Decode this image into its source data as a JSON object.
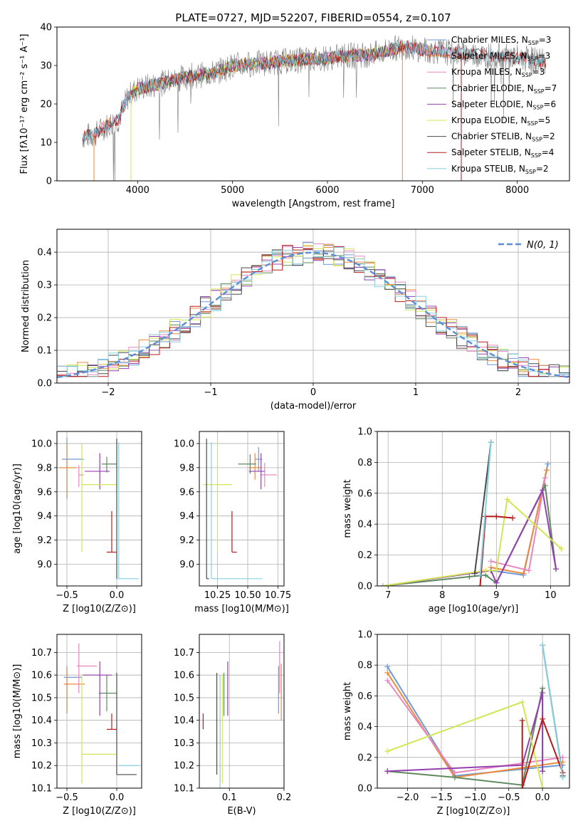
{
  "figure_title": "PLATE=0727, MJD=52207, FIBERID=0554, z=0.107",
  "colors": {
    "Chabrier MILES": "#6f9ad6",
    "Salpeter MILES": "#ee8a3c",
    "Kroupa MILES": "#e986c2",
    "Chabrier ELODIE": "#5f8a5f",
    "Salpeter ELODIE": "#9440b0",
    "Kroupa ELODIE": "#d2e654",
    "Chabrier STELIB": "#4a4a4a",
    "Salpeter STELIB": "#b81a1a",
    "Kroupa STELIB": "#86d2e0"
  },
  "chart_data": [
    {
      "id": "spectrum",
      "type": "line",
      "xlabel": "wavelength [Angstrom, rest frame]",
      "ylabel": "Flux [fλ10⁻¹⁷ erg cm⁻² s⁻¹ A⁻¹]",
      "xlim": [
        3150,
        8550
      ],
      "ylim": [
        0,
        40
      ],
      "xticks": [
        4000,
        5000,
        6000,
        7000,
        8000
      ],
      "yticks": [
        0,
        10,
        20,
        30,
        40
      ],
      "legend": "right",
      "legend_entries": [
        "Chabrier MILES, N_SSP=3",
        "Salpeter MILES, N_SSP=3",
        "Kroupa MILES, N_SSP=3",
        "Chabrier ELODIE, N_SSP=7",
        "Salpeter ELODIE, N_SSP=6",
        "Kroupa ELODIE, N_SSP=5",
        "Chabrier STELIB, N_SSP=2",
        "Salpeter STELIB, N_SSP=4",
        "Kroupa STELIB, N_SSP=2"
      ],
      "continuum": [
        [
          3420,
          11.5
        ],
        [
          3550,
          12
        ],
        [
          3650,
          14
        ],
        [
          3800,
          16
        ],
        [
          3900,
          22
        ],
        [
          4000,
          24
        ],
        [
          4200,
          25
        ],
        [
          4500,
          27
        ],
        [
          4800,
          28
        ],
        [
          5000,
          30
        ],
        [
          5500,
          31
        ],
        [
          6000,
          32
        ],
        [
          6500,
          33
        ],
        [
          6800,
          35
        ],
        [
          7000,
          34
        ],
        [
          7500,
          33
        ],
        [
          8000,
          32
        ],
        [
          8300,
          31
        ]
      ],
      "spectrum_xrange": [
        3420,
        8300
      ],
      "drop_lines": [
        3540,
        3930,
        6790,
        7410
      ],
      "model_ranges": {
        "Chabrier MILES": [
          3540,
          7400
        ],
        "Salpeter MILES": [
          3540,
          7400
        ],
        "Kroupa MILES": [
          3540,
          7400
        ],
        "Chabrier ELODIE": [
          3930,
          6790
        ],
        "Salpeter ELODIE": [
          3930,
          6790
        ],
        "Kroupa ELODIE": [
          3930,
          6790
        ],
        "Chabrier STELIB": [
          3420,
          8300
        ],
        "Salpeter STELIB": [
          3420,
          8300
        ],
        "Kroupa STELIB": [
          3420,
          8300
        ]
      }
    },
    {
      "id": "residuals",
      "type": "histogram",
      "xlabel": "(data-model)/error",
      "ylabel": "Normed distribution",
      "xlim": [
        -2.5,
        2.5
      ],
      "ylim": [
        0,
        0.47
      ],
      "xticks": [
        -2,
        -1,
        0,
        1,
        2
      ],
      "yticks": [
        0.0,
        0.1,
        0.2,
        0.3,
        0.4
      ],
      "bin_width": 0.1,
      "legend": "top-right",
      "legend_entry": "N(0, 1)",
      "reference_curve": "normal(0,1)"
    },
    {
      "id": "z_age",
      "type": "errorbar",
      "xlabel": "Z [log10(Z/Z⊙)]",
      "ylabel": "age [log10(age/yr)]",
      "xlim": [
        -0.6,
        0.25
      ],
      "ylim": [
        8.82,
        10.1
      ],
      "xticks": [
        -0.5,
        0.0
      ],
      "yticks": [
        9.0,
        9.2,
        9.4,
        9.6,
        9.8,
        10.0
      ],
      "points": [
        {
          "s": "Chabrier MILES",
          "x": -0.5,
          "xe": [
            0.05,
            0.17
          ],
          "y": 9.87,
          "ye": [
            0.33,
            0.18
          ]
        },
        {
          "s": "Salpeter MILES",
          "x": -0.5,
          "xe": [
            0.08,
            0.1
          ],
          "y": 9.8,
          "ye": [
            0.25,
            0.2
          ]
        },
        {
          "s": "Kroupa MILES",
          "x": -0.38,
          "xe": [
            0.0,
            0.05
          ],
          "y": 9.74,
          "ye": [
            0.1,
            0.08
          ]
        },
        {
          "s": "Chabrier ELODIE",
          "x": -0.1,
          "xe": [
            0.05,
            0.1
          ],
          "y": 9.83,
          "ye": [
            0.07,
            0.06
          ]
        },
        {
          "s": "Salpeter ELODIE",
          "x": -0.17,
          "xe": [
            0.15,
            0.1
          ],
          "y": 9.77,
          "ye": [
            0.15,
            0.15
          ]
        },
        {
          "s": "Kroupa ELODIE",
          "x": -0.35,
          "xe": [
            0.0,
            0.35
          ],
          "y": 9.66,
          "ye": [
            0.56,
            0.34
          ]
        },
        {
          "s": "Chabrier STELIB",
          "x": 0.0,
          "xe": [
            0.0,
            0.0
          ],
          "y": 8.88,
          "ye": [
            0.0,
            1.16
          ]
        },
        {
          "s": "Salpeter STELIB",
          "x": -0.05,
          "xe": [
            0.05,
            0.05
          ],
          "y": 9.1,
          "ye": [
            0.0,
            0.34
          ]
        },
        {
          "s": "Kroupa STELIB",
          "x": 0.02,
          "xe": [
            0.02,
            0.2
          ],
          "y": 8.88,
          "ye": [
            0.0,
            1.13
          ]
        }
      ]
    },
    {
      "id": "mass_age",
      "type": "errorbar",
      "xlabel": "mass [log10(M/M⊙)]",
      "ylabel": "",
      "xlim": [
        10.1,
        10.8
      ],
      "ylim": [
        8.82,
        10.1
      ],
      "xticks": [
        10.25,
        10.5,
        10.75
      ],
      "yticks": [
        9.0,
        9.2,
        9.4,
        9.6,
        9.8,
        10.0
      ],
      "points": [
        {
          "s": "Chabrier MILES",
          "x": 10.59,
          "xe": [
            0.03,
            0.03
          ],
          "y": 9.87,
          "ye": [
            0.1,
            0.1
          ]
        },
        {
          "s": "Salpeter MILES",
          "x": 10.56,
          "xe": [
            0.05,
            0.05
          ],
          "y": 9.8,
          "ye": [
            0.1,
            0.12
          ]
        },
        {
          "s": "Kroupa MILES",
          "x": 10.64,
          "xe": [
            0.03,
            0.1
          ],
          "y": 9.74,
          "ye": [
            0.1,
            0.1
          ]
        },
        {
          "s": "Chabrier ELODIE",
          "x": 10.52,
          "xe": [
            0.1,
            0.05
          ],
          "y": 9.83,
          "ye": [
            0.08,
            0.08
          ]
        },
        {
          "s": "Salpeter ELODIE",
          "x": 10.61,
          "xe": [
            0.1,
            0.03
          ],
          "y": 9.77,
          "ye": [
            0.15,
            0.15
          ]
        },
        {
          "s": "Kroupa ELODIE",
          "x": 10.25,
          "xe": [
            0.12,
            0.12
          ],
          "y": 9.66,
          "ye": [
            0.56,
            0.38
          ]
        },
        {
          "s": "Chabrier STELIB",
          "x": 10.16,
          "xe": [
            0.0,
            0.02
          ],
          "y": 8.88,
          "ye": [
            0.0,
            1.16
          ]
        },
        {
          "s": "Salpeter STELIB",
          "x": 10.37,
          "xe": [
            0.0,
            0.04
          ],
          "y": 9.1,
          "ye": [
            0.0,
            0.34
          ]
        },
        {
          "s": "Kroupa STELIB",
          "x": 10.2,
          "xe": [
            0.0,
            0.42
          ],
          "y": 8.88,
          "ye": [
            0.0,
            1.13
          ]
        }
      ]
    },
    {
      "id": "age_weight",
      "type": "line",
      "xlabel": "age [log10(age/yr)]",
      "ylabel": "mass weight",
      "xlim": [
        6.8,
        10.35
      ],
      "ylim": [
        0,
        1.0
      ],
      "xticks": [
        7,
        8,
        9,
        10
      ],
      "yticks": [
        0.0,
        0.2,
        0.4,
        0.6,
        0.8,
        1.0
      ],
      "series": [
        {
          "s": "Chabrier MILES",
          "pts": [
            [
              8.9,
              0.1
            ],
            [
              9.5,
              0.07
            ],
            [
              9.95,
              0.79
            ]
          ]
        },
        {
          "s": "Salpeter MILES",
          "pts": [
            [
              8.9,
              0.12
            ],
            [
              9.5,
              0.08
            ],
            [
              9.93,
              0.75
            ]
          ]
        },
        {
          "s": "Kroupa MILES",
          "pts": [
            [
              8.9,
              0.16
            ],
            [
              9.6,
              0.1
            ],
            [
              9.9,
              0.7
            ]
          ]
        },
        {
          "s": "Chabrier ELODIE",
          "pts": [
            [
              6.9,
              0.0
            ],
            [
              8.5,
              0.06
            ],
            [
              8.8,
              0.07
            ],
            [
              9.0,
              0.02
            ],
            [
              9.9,
              0.65
            ],
            [
              10.1,
              0.11
            ]
          ]
        },
        {
          "s": "Salpeter ELODIE",
          "pts": [
            [
              6.9,
              0.0
            ],
            [
              8.9,
              0.1
            ],
            [
              9.0,
              0.02
            ],
            [
              9.85,
              0.62
            ],
            [
              10.1,
              0.11
            ]
          ]
        },
        {
          "s": "Kroupa ELODIE",
          "pts": [
            [
              6.9,
              0.0
            ],
            [
              8.8,
              0.1
            ],
            [
              9.0,
              0.1
            ],
            [
              9.2,
              0.56
            ],
            [
              10.2,
              0.24
            ]
          ]
        },
        {
          "s": "Chabrier STELIB",
          "pts": [
            [
              8.6,
              0.08
            ],
            [
              8.9,
              0.93
            ]
          ]
        },
        {
          "s": "Salpeter STELIB",
          "pts": [
            [
              8.7,
              0.0
            ],
            [
              8.8,
              0.45
            ],
            [
              9.0,
              0.45
            ],
            [
              9.3,
              0.44
            ]
          ]
        },
        {
          "s": "Kroupa STELIB",
          "pts": [
            [
              8.7,
              0.07
            ],
            [
              8.9,
              0.93
            ]
          ]
        }
      ]
    },
    {
      "id": "z_mass",
      "type": "errorbar",
      "xlabel": "Z [log10(Z/Z⊙)]",
      "ylabel": "mass [log10(M/M⊙)]",
      "xlim": [
        -0.6,
        0.25
      ],
      "ylim": [
        10.1,
        10.78
      ],
      "xticks": [
        -0.5,
        0.0
      ],
      "yticks": [
        10.1,
        10.2,
        10.3,
        10.4,
        10.5,
        10.6,
        10.7
      ],
      "points": [
        {
          "s": "Chabrier MILES",
          "x": -0.5,
          "xe": [
            0.03,
            0.15
          ],
          "y": 10.59,
          "ye": [
            0.16,
            0.05
          ]
        },
        {
          "s": "Salpeter MILES",
          "x": -0.5,
          "xe": [
            0.03,
            0.18
          ],
          "y": 10.56,
          "ye": [
            0.12,
            0.07
          ]
        },
        {
          "s": "Kroupa MILES",
          "x": -0.38,
          "xe": [
            0.02,
            0.18
          ],
          "y": 10.64,
          "ye": [
            0.12,
            0.1
          ]
        },
        {
          "s": "Chabrier ELODIE",
          "x": -0.1,
          "xe": [
            0.08,
            0.1
          ],
          "y": 10.52,
          "ye": [
            0.08,
            0.08
          ]
        },
        {
          "s": "Salpeter ELODIE",
          "x": -0.17,
          "xe": [
            0.17,
            0.12
          ],
          "y": 10.6,
          "ye": [
            0.18,
            0.06
          ]
        },
        {
          "s": "Kroupa ELODIE",
          "x": -0.35,
          "xe": [
            0.0,
            0.34
          ],
          "y": 10.25,
          "ye": [
            0.13,
            0.35
          ]
        },
        {
          "s": "Chabrier STELIB",
          "x": 0.0,
          "xe": [
            0.0,
            0.2
          ],
          "y": 10.16,
          "ye": [
            0.0,
            0.45
          ]
        },
        {
          "s": "Salpeter STELIB",
          "x": -0.05,
          "xe": [
            0.05,
            0.05
          ],
          "y": 10.36,
          "ye": [
            0.0,
            0.07
          ]
        },
        {
          "s": "Kroupa STELIB",
          "x": 0.02,
          "xe": [
            0.0,
            0.2
          ],
          "y": 10.2,
          "ye": [
            0.0,
            0.0
          ]
        }
      ]
    },
    {
      "id": "ebv_mass",
      "type": "errorbar",
      "xlabel": "E(B-V)",
      "ylabel": "",
      "xlim": [
        0.045,
        0.2
      ],
      "ylim": [
        10.1,
        10.78
      ],
      "xticks": [
        0.1,
        0.2
      ],
      "yticks": [
        10.1,
        10.2,
        10.3,
        10.4,
        10.5,
        10.6,
        10.7
      ],
      "points": [
        {
          "s": "Chabrier MILES",
          "x": 0.19,
          "xe": [
            0,
            0
          ],
          "y": 10.59,
          "ye": [
            0.16,
            0.05
          ]
        },
        {
          "s": "Salpeter MILES",
          "x": 0.195,
          "xe": [
            0,
            0
          ],
          "y": 10.56,
          "ye": [
            0.16,
            0.09
          ]
        },
        {
          "s": "Kroupa MILES",
          "x": 0.192,
          "xe": [
            0,
            0
          ],
          "y": 10.64,
          "ye": [
            0.12,
            0.11
          ]
        },
        {
          "s": "Chabrier ELODIE",
          "x": 0.09,
          "xe": [
            0,
            0
          ],
          "y": 10.52,
          "ye": [
            0.1,
            0.09
          ]
        },
        {
          "s": "Salpeter ELODIE",
          "x": 0.097,
          "xe": [
            0,
            0
          ],
          "y": 10.6,
          "ye": [
            0.18,
            0.06
          ]
        },
        {
          "s": "Kroupa ELODIE",
          "x": 0.087,
          "xe": [
            0,
            0
          ],
          "y": 10.25,
          "ye": [
            0.13,
            0.35
          ]
        },
        {
          "s": "Chabrier STELIB",
          "x": 0.077,
          "xe": [
            0,
            0
          ],
          "y": 10.16,
          "ye": [
            0.0,
            0.45
          ]
        },
        {
          "s": "Salpeter STELIB",
          "x": 0.052,
          "xe": [
            0,
            0
          ],
          "y": 10.4,
          "ye": [
            0.04,
            0.03
          ]
        },
        {
          "s": "Kroupa STELIB",
          "x": 0.083,
          "xe": [
            0,
            0
          ],
          "y": 10.2,
          "ye": [
            0.1,
            0.4
          ]
        }
      ]
    },
    {
      "id": "z_weight",
      "type": "line",
      "xlabel": "Z [log10(Z/Z⊙)]",
      "ylabel": "mass weight",
      "xlim": [
        -2.45,
        0.4
      ],
      "ylim": [
        0,
        1.0
      ],
      "xticks": [
        -2.0,
        -1.5,
        -1.0,
        -0.5,
        0.0
      ],
      "yticks": [
        0.0,
        0.2,
        0.4,
        0.6,
        0.8,
        1.0
      ],
      "series": [
        {
          "s": "Chabrier MILES",
          "pts": [
            [
              -2.3,
              0.79
            ],
            [
              -1.3,
              0.08
            ],
            [
              0.3,
              0.15
            ]
          ]
        },
        {
          "s": "Salpeter MILES",
          "pts": [
            [
              -2.3,
              0.75
            ],
            [
              -1.3,
              0.07
            ],
            [
              0.3,
              0.17
            ]
          ]
        },
        {
          "s": "Kroupa MILES",
          "pts": [
            [
              -2.3,
              0.7
            ],
            [
              -1.3,
              0.1
            ],
            [
              0.3,
              0.2
            ]
          ]
        },
        {
          "s": "Chabrier ELODIE",
          "pts": [
            [
              -2.3,
              0.11
            ],
            [
              -1.3,
              0.07
            ],
            [
              -0.3,
              0.02
            ],
            [
              0.0,
              0.65
            ],
            [
              0.0,
              0.11
            ]
          ]
        },
        {
          "s": "Salpeter ELODIE",
          "pts": [
            [
              -2.3,
              0.11
            ],
            [
              -0.3,
              0.15
            ],
            [
              0.0,
              0.62
            ],
            [
              0.0,
              0.11
            ]
          ]
        },
        {
          "s": "Kroupa ELODIE",
          "pts": [
            [
              -2.3,
              0.24
            ],
            [
              -0.3,
              0.56
            ],
            [
              0.0,
              0.0
            ]
          ]
        },
        {
          "s": "Chabrier STELIB",
          "pts": [
            [
              0.0,
              0.93
            ],
            [
              0.3,
              0.08
            ]
          ]
        },
        {
          "s": "Salpeter STELIB",
          "pts": [
            [
              -0.3,
              0.44
            ],
            [
              -0.3,
              0.0
            ],
            [
              0.0,
              0.45
            ],
            [
              0.3,
              0.1
            ]
          ]
        },
        {
          "s": "Kroupa STELIB",
          "pts": [
            [
              0.0,
              0.93
            ],
            [
              0.3,
              0.07
            ]
          ]
        }
      ]
    }
  ]
}
